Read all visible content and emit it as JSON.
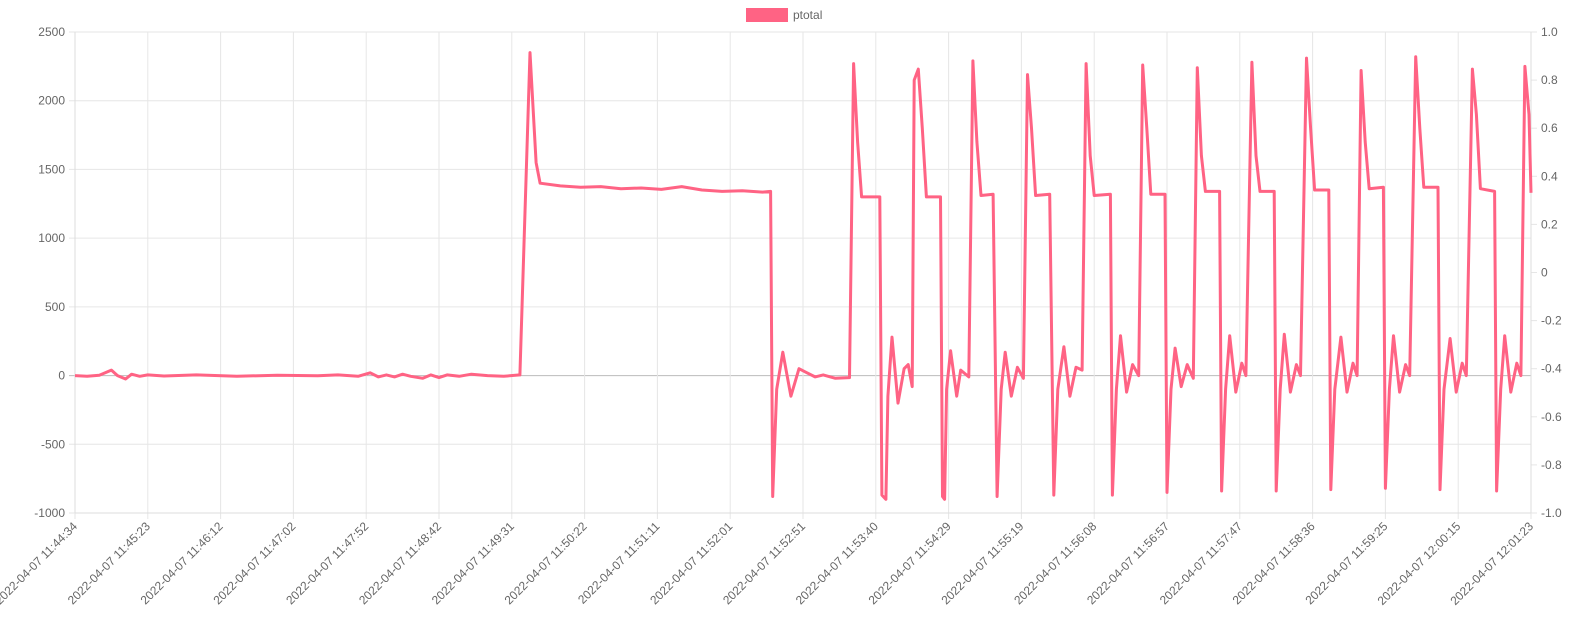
{
  "chart_data": {
    "type": "line",
    "legend": {
      "position": "top",
      "items": [
        {
          "label": "ptotal",
          "color": "#ff6384"
        }
      ]
    },
    "grid": true,
    "y_left": {
      "min": -1000,
      "max": 2500,
      "ticks": [
        "2500",
        "2000",
        "1500",
        "1000",
        "500",
        "0",
        "-500",
        "-1000"
      ]
    },
    "y_right": {
      "min": -1.0,
      "max": 1.0,
      "ticks": [
        "1.0",
        "0.8",
        "0.6",
        "0.4",
        "0.2",
        "0",
        "-0.2",
        "-0.4",
        "-0.6",
        "-0.8",
        "-1.0"
      ]
    },
    "x_ticks": [
      "2022-04-07 11:44:34",
      "2022-04-07 11:45:23",
      "2022-04-07 11:46:12",
      "2022-04-07 11:47:02",
      "2022-04-07 11:47:52",
      "2022-04-07 11:48:42",
      "2022-04-07 11:49:31",
      "2022-04-07 11:50:22",
      "2022-04-07 11:51:11",
      "2022-04-07 11:52:01",
      "2022-04-07 11:52:51",
      "2022-04-07 11:53:40",
      "2022-04-07 11:54:29",
      "2022-04-07 11:55:19",
      "2022-04-07 11:56:08",
      "2022-04-07 11:56:57",
      "2022-04-07 11:57:47",
      "2022-04-07 11:58:36",
      "2022-04-07 11:59:25",
      "2022-04-07 12:00:15",
      "2022-04-07 12:01:23"
    ],
    "series": [
      {
        "name": "ptotal",
        "color": "#ff6384",
        "points": [
          [
            0,
            0
          ],
          [
            0.3,
            -5
          ],
          [
            0.6,
            3
          ],
          [
            0.9,
            40
          ],
          [
            1.05,
            0
          ],
          [
            1.25,
            -25
          ],
          [
            1.4,
            10
          ],
          [
            1.6,
            -5
          ],
          [
            1.8,
            5
          ],
          [
            2.2,
            -3
          ],
          [
            3,
            5
          ],
          [
            4,
            -5
          ],
          [
            5,
            3
          ],
          [
            6,
            -2
          ],
          [
            6.5,
            5
          ],
          [
            7,
            -5
          ],
          [
            7.3,
            20
          ],
          [
            7.5,
            -10
          ],
          [
            7.7,
            5
          ],
          [
            7.9,
            -10
          ],
          [
            8.1,
            10
          ],
          [
            8.3,
            -5
          ],
          [
            8.6,
            -20
          ],
          [
            8.8,
            5
          ],
          [
            9.0,
            -15
          ],
          [
            9.2,
            5
          ],
          [
            9.5,
            -5
          ],
          [
            9.8,
            10
          ],
          [
            10.2,
            0
          ],
          [
            10.6,
            -5
          ],
          [
            11.0,
            5
          ],
          [
            11.25,
            2350
          ],
          [
            11.4,
            1550
          ],
          [
            11.5,
            1400
          ],
          [
            12.0,
            1380
          ],
          [
            12.5,
            1370
          ],
          [
            13.0,
            1375
          ],
          [
            13.5,
            1360
          ],
          [
            14.0,
            1365
          ],
          [
            14.5,
            1355
          ],
          [
            15.0,
            1375
          ],
          [
            15.5,
            1350
          ],
          [
            16.0,
            1340
          ],
          [
            16.5,
            1345
          ],
          [
            17.0,
            1335
          ],
          [
            17.2,
            1340
          ],
          [
            17.25,
            -880
          ],
          [
            17.35,
            -100
          ],
          [
            17.5,
            170
          ],
          [
            17.7,
            -150
          ],
          [
            17.9,
            50
          ],
          [
            18.1,
            20
          ],
          [
            18.3,
            -10
          ],
          [
            18.5,
            5
          ],
          [
            18.8,
            -20
          ],
          [
            19.15,
            -15
          ],
          [
            19.25,
            2270
          ],
          [
            19.35,
            1700
          ],
          [
            19.45,
            1300
          ],
          [
            19.9,
            1300
          ],
          [
            19.95,
            -870
          ],
          [
            20.05,
            -900
          ],
          [
            20.1,
            -150
          ],
          [
            20.2,
            280
          ],
          [
            20.35,
            -200
          ],
          [
            20.5,
            50
          ],
          [
            20.6,
            80
          ],
          [
            20.7,
            -80
          ],
          [
            20.75,
            2150
          ],
          [
            20.85,
            2230
          ],
          [
            20.95,
            1800
          ],
          [
            21.05,
            1300
          ],
          [
            21.4,
            1300
          ],
          [
            21.45,
            -880
          ],
          [
            21.5,
            -900
          ],
          [
            21.55,
            -100
          ],
          [
            21.65,
            180
          ],
          [
            21.8,
            -150
          ],
          [
            21.9,
            40
          ],
          [
            22.1,
            -10
          ],
          [
            22.2,
            2290
          ],
          [
            22.3,
            1700
          ],
          [
            22.4,
            1310
          ],
          [
            22.7,
            1320
          ],
          [
            22.8,
            -880
          ],
          [
            22.9,
            -100
          ],
          [
            23.0,
            170
          ],
          [
            23.15,
            -150
          ],
          [
            23.3,
            60
          ],
          [
            23.45,
            -20
          ],
          [
            23.55,
            2190
          ],
          [
            23.65,
            1800
          ],
          [
            23.75,
            1310
          ],
          [
            24.1,
            1320
          ],
          [
            24.2,
            -870
          ],
          [
            24.3,
            -100
          ],
          [
            24.45,
            210
          ],
          [
            24.6,
            -150
          ],
          [
            24.75,
            60
          ],
          [
            24.9,
            40
          ],
          [
            25.0,
            2270
          ],
          [
            25.1,
            1600
          ],
          [
            25.2,
            1310
          ],
          [
            25.6,
            1320
          ],
          [
            25.65,
            -870
          ],
          [
            25.75,
            -100
          ],
          [
            25.85,
            290
          ],
          [
            26.0,
            -120
          ],
          [
            26.15,
            80
          ],
          [
            26.3,
            0
          ],
          [
            26.4,
            2260
          ],
          [
            26.5,
            1800
          ],
          [
            26.6,
            1320
          ],
          [
            26.95,
            1320
          ],
          [
            27.0,
            -850
          ],
          [
            27.1,
            -100
          ],
          [
            27.2,
            200
          ],
          [
            27.35,
            -80
          ],
          [
            27.5,
            80
          ],
          [
            27.65,
            -20
          ],
          [
            27.75,
            2240
          ],
          [
            27.85,
            1600
          ],
          [
            27.95,
            1340
          ],
          [
            28.3,
            1340
          ],
          [
            28.35,
            -840
          ],
          [
            28.45,
            -100
          ],
          [
            28.55,
            290
          ],
          [
            28.7,
            -120
          ],
          [
            28.85,
            90
          ],
          [
            28.95,
            0
          ],
          [
            29.1,
            2280
          ],
          [
            29.2,
            1600
          ],
          [
            29.3,
            1340
          ],
          [
            29.65,
            1340
          ],
          [
            29.7,
            -840
          ],
          [
            29.8,
            -100
          ],
          [
            29.9,
            300
          ],
          [
            30.05,
            -120
          ],
          [
            30.2,
            80
          ],
          [
            30.3,
            0
          ],
          [
            30.45,
            2310
          ],
          [
            30.55,
            1800
          ],
          [
            30.65,
            1350
          ],
          [
            31.0,
            1350
          ],
          [
            31.05,
            -830
          ],
          [
            31.15,
            -100
          ],
          [
            31.3,
            280
          ],
          [
            31.45,
            -120
          ],
          [
            31.6,
            90
          ],
          [
            31.7,
            0
          ],
          [
            31.8,
            2220
          ],
          [
            31.9,
            1700
          ],
          [
            32.0,
            1360
          ],
          [
            32.35,
            1370
          ],
          [
            32.4,
            -820
          ],
          [
            32.5,
            -100
          ],
          [
            32.6,
            290
          ],
          [
            32.75,
            -120
          ],
          [
            32.9,
            80
          ],
          [
            33.0,
            0
          ],
          [
            33.15,
            2320
          ],
          [
            33.25,
            1800
          ],
          [
            33.35,
            1370
          ],
          [
            33.7,
            1370
          ],
          [
            33.75,
            -830
          ],
          [
            33.85,
            -100
          ],
          [
            34.0,
            270
          ],
          [
            34.15,
            -120
          ],
          [
            34.3,
            90
          ],
          [
            34.4,
            0
          ],
          [
            34.55,
            2230
          ],
          [
            34.65,
            1900
          ],
          [
            34.75,
            1360
          ],
          [
            35.1,
            1340
          ],
          [
            35.15,
            -840
          ],
          [
            35.25,
            -100
          ],
          [
            35.35,
            290
          ],
          [
            35.5,
            -120
          ],
          [
            35.65,
            90
          ],
          [
            35.75,
            0
          ],
          [
            35.85,
            2250
          ],
          [
            35.95,
            1900
          ],
          [
            36.0,
            1330
          ]
        ]
      }
    ]
  }
}
